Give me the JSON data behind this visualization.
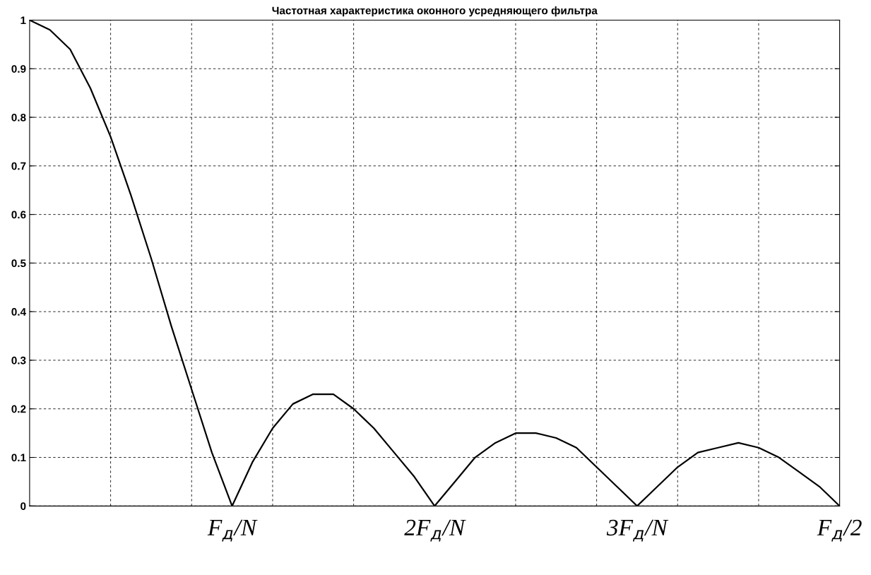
{
  "chart_data": {
    "type": "line",
    "title": "Частотная характеристика оконного усредняющего фильтра",
    "categories": [
      null,
      null,
      null,
      null,
      null,
      null,
      null,
      null,
      null,
      null,
      "F$_{д}$/N",
      null,
      null,
      null,
      null,
      null,
      null,
      null,
      null,
      null,
      "2F$_{д}$/N",
      null,
      null,
      null,
      null,
      null,
      null,
      null,
      null,
      null,
      "3F$_{д}$/N",
      null,
      null,
      null,
      null,
      null,
      null,
      null,
      null,
      null,
      "F$_{д}$/2"
    ],
    "series": [
      {
        "color": "#000000",
        "values": [
          1,
          0.98,
          0.94,
          0.86,
          0.76,
          0.64,
          0.51,
          0.37,
          0.24,
          0.11,
          0,
          0.09,
          0.16,
          0.21,
          0.23,
          0.23,
          0.2,
          0.16,
          0.11,
          0.06,
          0,
          0.05,
          0.1,
          0.13,
          0.15,
          0.15,
          0.14,
          0.12,
          0.08,
          0.04,
          0,
          0.04,
          0.08,
          0.11,
          0.12,
          0.13,
          0.12,
          0.1,
          0.07,
          0.04,
          0
        ]
      }
    ],
    "ylim": [
      0,
      1
    ],
    "yticks": [
      0,
      0.1,
      0.2,
      0.3,
      0.4,
      0.5,
      0.6,
      0.7,
      0.8,
      0.9,
      1
    ],
    "grid": true,
    "line_style": "solid",
    "marker": "none"
  }
}
